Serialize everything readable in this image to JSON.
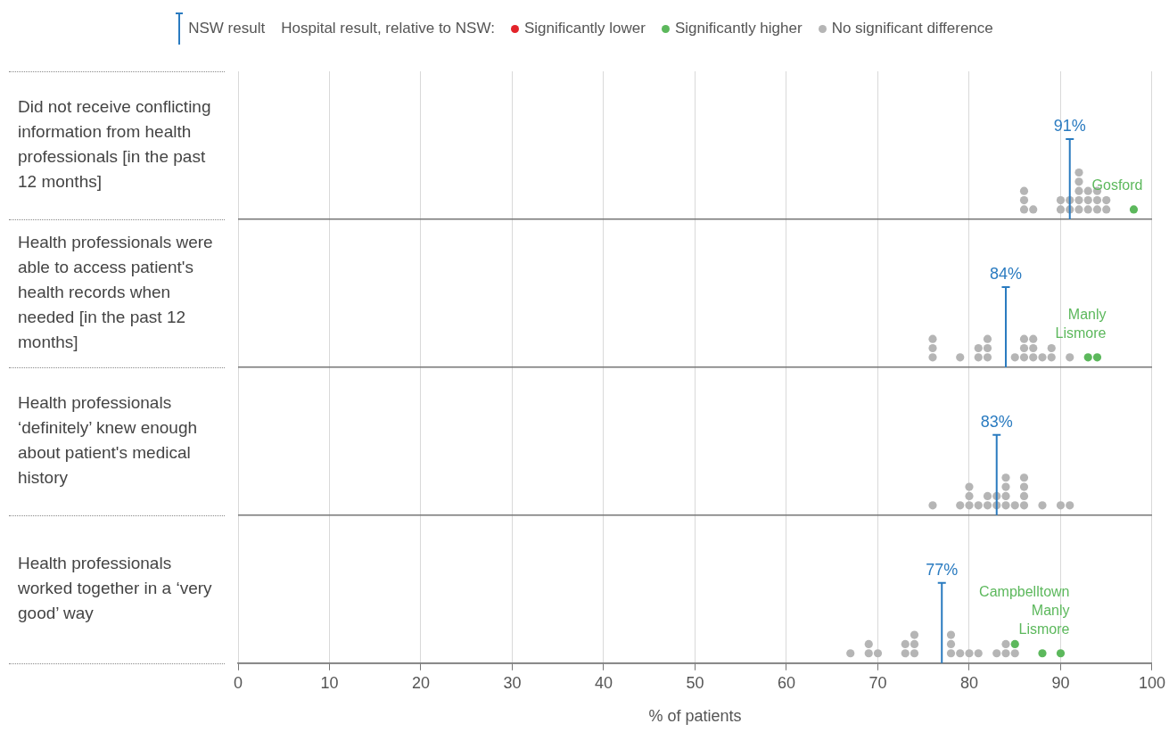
{
  "chart_data": {
    "type": "scatter",
    "orientation": "horizontal",
    "categories": [
      "Did not receive conflicting information from health professionals [in the past 12 months]",
      "Health professionals were able to access patient's health records when needed [in the past 12 months]",
      "Health professionals ‘definitely’ knew enough about patient's medical history",
      "Health professionals worked together in a ‘very good’ way"
    ],
    "legend": "top",
    "legend_title": "Hospital result, relative to NSW:",
    "xlabel": "% of patients",
    "annotations": [
      "NSW result",
      {
        "text": "Gosford",
        "x": 98,
        "y": "Did not receive conflicting information from health professionals [in the past 12 months]"
      },
      {
        "text": "Manly",
        "x": 93,
        "y": "Health professionals were able to access patient's health records when needed [in the past 12 months]"
      },
      {
        "text": "Lismore",
        "x": 94,
        "y": "Health professionals were able to access patient's health records when needed [in the past 12 months]"
      },
      "Campbelltown",
      {
        "text": "Manly",
        "x": 88,
        "y": "Health professionals worked together in a ‘very good’ way"
      },
      {
        "text": "Lismore",
        "x": 90,
        "y": "Health professionals worked together in a ‘very good’ way"
      }
    ],
    "series": [
      {
        "name": "Significantly lower",
        "color": "#e3232a",
        "x": [
          "Did not receive conflicting information from health professionals [in the past 12 months]",
          "Health professionals were able to access patient's health records when needed [in the past 12 months]",
          "Health professionals ‘definitely’ knew enough about patient's medical history",
          "Health professionals worked together in a ‘very good’ way"
        ],
        "values": [
          null,
          null,
          null,
          null
        ]
      },
      {
        "name": "Significantly higher",
        "color": "#5cb85c",
        "x": [
          "Did not receive conflicting information from health professionals [in the past 12 months]",
          "Health professionals were able to access patient's health records when needed [in the past 12 months]",
          "Health professionals were able to access patient's health records when needed [in the past 12 months]",
          "Health professionals worked together in a ‘very good’ way",
          "Health professionals worked together in a ‘very good’ way",
          "Health professionals worked together in a ‘very good’ way"
        ],
        "values": [
          98,
          93,
          94,
          85,
          88,
          90
        ]
      },
      {
        "name": "No significant difference",
        "color": "#b5b5b5",
        "x": [
          "Did not receive conflicting information from health professionals [in the past 12 months]",
          "Did not receive conflicting information from health professionals [in the past 12 months]",
          "Did not receive conflicting information from health professionals [in the past 12 months]",
          "Did not receive conflicting information from health professionals [in the past 12 months]",
          "Did not receive conflicting information from health professionals [in the past 12 months]",
          "Did not receive conflicting information from health professionals [in the past 12 months]",
          "Did not receive conflicting information from health professionals [in the past 12 months]",
          "Did not receive conflicting information from health professionals [in the past 12 months]",
          "Did not receive conflicting information from health professionals [in the past 12 months]",
          "Did not receive conflicting information from health professionals [in the past 12 months]",
          "Did not receive conflicting information from health professionals [in the past 12 months]",
          "Did not receive conflicting information from health professionals [in the past 12 months]",
          "Did not receive conflicting information from health professionals [in the past 12 months]",
          "Did not receive conflicting information from health professionals [in the past 12 months]",
          "Did not receive conflicting information from health professionals [in the past 12 months]",
          "Did not receive conflicting information from health professionals [in the past 12 months]",
          "Did not receive conflicting information from health professionals [in the past 12 months]",
          "Did not receive conflicting information from health professionals [in the past 12 months]",
          "Did not receive conflicting information from health professionals [in the past 12 months]",
          "Did not receive conflicting information from health professionals [in the past 12 months]",
          "Did not receive conflicting information from health professionals [in the past 12 months]",
          "Health professionals were able to access patient's health records when needed [in the past 12 months]",
          "Health professionals were able to access patient's health records when needed [in the past 12 months]",
          "Health professionals were able to access patient's health records when needed [in the past 12 months]",
          "Health professionals were able to access patient's health records when needed [in the past 12 months]",
          "Health professionals were able to access patient's health records when needed [in the past 12 months]",
          "Health professionals were able to access patient's health records when needed [in the past 12 months]",
          "Health professionals were able to access patient's health records when needed [in the past 12 months]",
          "Health professionals were able to access patient's health records when needed [in the past 12 months]",
          "Health professionals were able to access patient's health records when needed [in the past 12 months]",
          "Health professionals were able to access patient's health records when needed [in the past 12 months]",
          "Health professionals were able to access patient's health records when needed [in the past 12 months]",
          "Health professionals were able to access patient's health records when needed [in the past 12 months]",
          "Health professionals were able to access patient's health records when needed [in the past 12 months]",
          "Health professionals were able to access patient's health records when needed [in the past 12 months]",
          "Health professionals were able to access patient's health records when needed [in the past 12 months]",
          "Health professionals were able to access patient's health records when needed [in the past 12 months]",
          "Health professionals were able to access patient's health records when needed [in the past 12 months]",
          "Health professionals were able to access patient's health records when needed [in the past 12 months]",
          "Health professionals were able to access patient's health records when needed [in the past 12 months]",
          "Health professionals were able to access patient's health records when needed [in the past 12 months]",
          "Health professionals ‘definitely’ knew enough about patient's medical history",
          "Health professionals ‘definitely’ knew enough about patient's medical history",
          "Health professionals ‘definitely’ knew enough about patient's medical history",
          "Health professionals ‘definitely’ knew enough about patient's medical history",
          "Health professionals ‘definitely’ knew enough about patient's medical history",
          "Health professionals ‘definitely’ knew enough about patient's medical history",
          "Health professionals ‘definitely’ knew enough about patient's medical history",
          "Health professionals ‘definitely’ knew enough about patient's medical history",
          "Health professionals ‘definitely’ knew enough about patient's medical history",
          "Health professionals ‘definitely’ knew enough about patient's medical history",
          "Health professionals ‘definitely’ knew enough about patient's medical history",
          "Health professionals ‘definitely’ knew enough about patient's medical history",
          "Health professionals ‘definitely’ knew enough about patient's medical history",
          "Health professionals ‘definitely’ knew enough about patient's medical history",
          "Health professionals ‘definitely’ knew enough about patient's medical history",
          "Health professionals ‘definitely’ knew enough about patient's medical history",
          "Health professionals ‘definitely’ knew enough about patient's medical history",
          "Health professionals ‘definitely’ knew enough about patient's medical history",
          "Health professionals ‘definitely’ knew enough about patient's medical history",
          "Health professionals ‘definitely’ knew enough about patient's medical history",
          "Health professionals ‘definitely’ knew enough about patient's medical history",
          "Health professionals ‘definitely’ knew enough about patient's medical history",
          "Health professionals worked together in a ‘very good’ way",
          "Health professionals worked together in a ‘very good’ way",
          "Health professionals worked together in a ‘very good’ way",
          "Health professionals worked together in a ‘very good’ way",
          "Health professionals worked together in a ‘very good’ way",
          "Health professionals worked together in a ‘very good’ way",
          "Health professionals worked together in a ‘very good’ way",
          "Health professionals worked together in a ‘very good’ way",
          "Health professionals worked together in a ‘very good’ way",
          "Health professionals worked together in a ‘very good’ way",
          "Health professionals worked together in a ‘very good’ way",
          "Health professionals worked together in a ‘very good’ way",
          "Health professionals worked together in a ‘very good’ way",
          "Health professionals worked together in a ‘very good’ way",
          "Health professionals worked together in a ‘very good’ way",
          "Health professionals worked together in a ‘very good’ way",
          "Health professionals worked together in a ‘very good’ way",
          "Health professionals worked together in a ‘very good’ way",
          "Health professionals worked together in a ‘very good’ way"
        ],
        "values": [
          86,
          86,
          86,
          87,
          90,
          90,
          91,
          91,
          92,
          92,
          92,
          92,
          92,
          93,
          93,
          93,
          94,
          94,
          94,
          95,
          95,
          76,
          76,
          76,
          79,
          81,
          81,
          82,
          82,
          82,
          85,
          86,
          86,
          86,
          87,
          87,
          87,
          88,
          89,
          89,
          91,
          76,
          79,
          80,
          80,
          80,
          81,
          82,
          82,
          83,
          83,
          84,
          84,
          84,
          84,
          85,
          86,
          86,
          86,
          86,
          88,
          90,
          91,
          67,
          69,
          69,
          70,
          73,
          73,
          74,
          74,
          74,
          78,
          78,
          78,
          79,
          80,
          81,
          83,
          84,
          84,
          85
        ]
      }
    ],
    "ref_lines": [
      {
        "axis": "x",
        "value": 91,
        "label": "91%",
        "color": "#2a7bc0"
      },
      {
        "axis": "x",
        "value": 84,
        "label": "84%",
        "color": "#2a7bc0"
      },
      {
        "axis": "x",
        "value": 83,
        "label": "83%",
        "color": "#2a7bc0"
      },
      {
        "axis": "x",
        "value": 77,
        "label": "77%",
        "color": "#2a7bc0"
      }
    ],
    "xlim": [
      0,
      100
    ],
    "xticks": [
      0,
      10,
      20,
      30,
      40,
      50,
      60,
      70,
      80,
      90,
      100
    ],
    "grid": "x",
    "marker": "circle"
  }
}
